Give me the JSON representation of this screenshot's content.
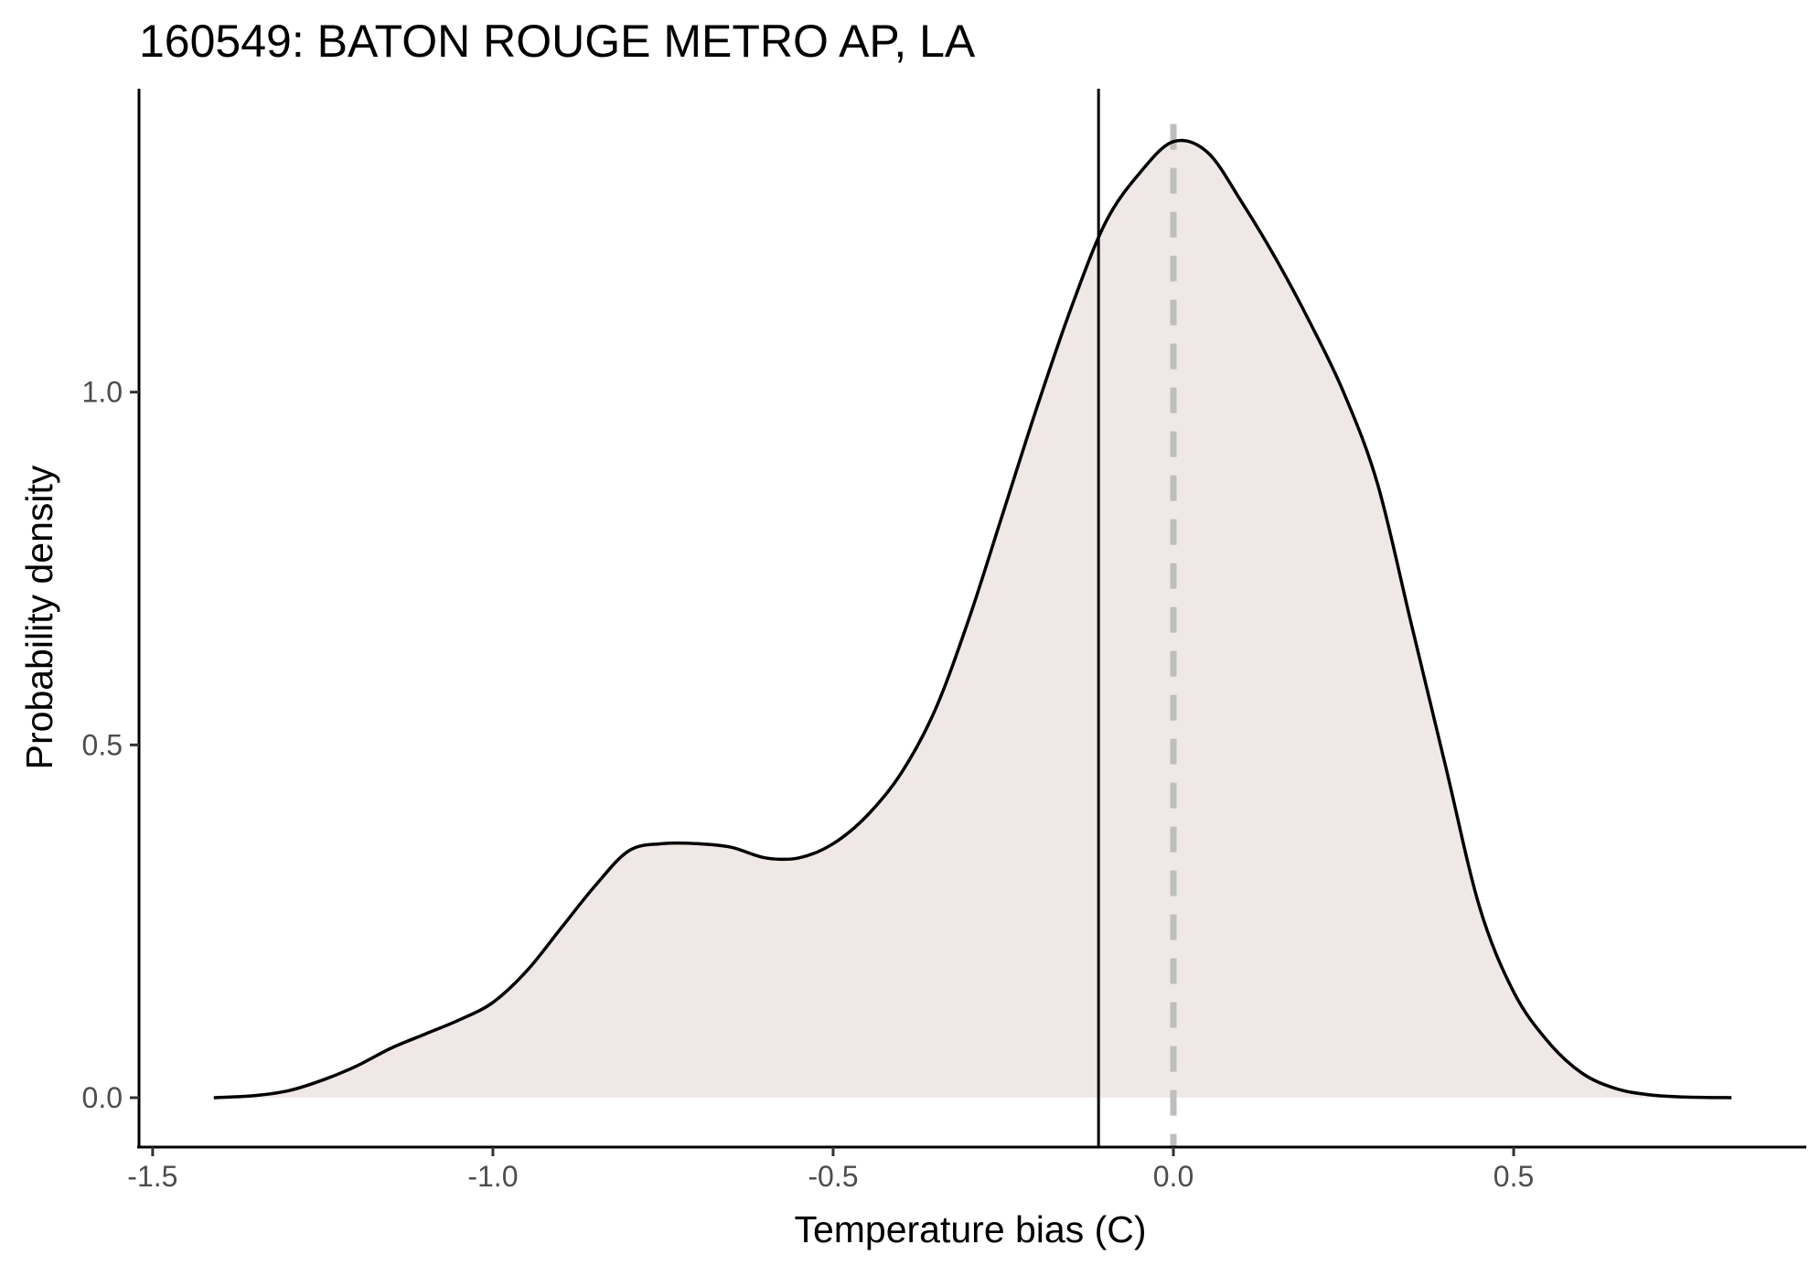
{
  "chart_data": {
    "type": "area",
    "title": "160549: BATON ROUGE METRO AP, LA",
    "xlabel": "Temperature bias (C)",
    "ylabel": "Probability density",
    "xlim": [
      -1.52,
      0.93
    ],
    "ylim": [
      -0.07,
      1.43
    ],
    "x_ticks": [
      -1.5,
      -1.0,
      -0.5,
      0.0,
      0.5
    ],
    "x_tick_labels": [
      "-1.5",
      "-1.0",
      "-0.5",
      "0.0",
      "0.5"
    ],
    "y_ticks": [
      0.0,
      0.5,
      1.0
    ],
    "y_tick_labels": [
      "0.0",
      "0.5",
      "1.0"
    ],
    "grid": false,
    "fill_color": "#efe8e6",
    "line_color": "#000000",
    "reference_lines": [
      {
        "x": -0.11,
        "style": "solid",
        "color": "#000000"
      },
      {
        "x": 0.0,
        "style": "dashed",
        "color": "#bebebe"
      }
    ],
    "series": [
      {
        "x": [
          -1.41,
          -1.35,
          -1.3,
          -1.25,
          -1.2,
          -1.15,
          -1.1,
          -1.05,
          -1.0,
          -0.95,
          -0.9,
          -0.85,
          -0.8,
          -0.75,
          -0.7,
          -0.65,
          -0.6,
          -0.55,
          -0.5,
          -0.45,
          -0.4,
          -0.35,
          -0.3,
          -0.25,
          -0.2,
          -0.15,
          -0.1,
          -0.05,
          0.0,
          0.05,
          0.1,
          0.15,
          0.2,
          0.25,
          0.3,
          0.35,
          0.4,
          0.45,
          0.5,
          0.55,
          0.6,
          0.65,
          0.7,
          0.75,
          0.82
        ],
        "y": [
          0.0,
          0.003,
          0.01,
          0.025,
          0.045,
          0.07,
          0.09,
          0.11,
          0.135,
          0.18,
          0.24,
          0.3,
          0.35,
          0.36,
          0.36,
          0.355,
          0.34,
          0.34,
          0.36,
          0.4,
          0.46,
          0.55,
          0.68,
          0.83,
          0.98,
          1.12,
          1.24,
          1.31,
          1.355,
          1.34,
          1.27,
          1.19,
          1.1,
          1.0,
          0.87,
          0.67,
          0.47,
          0.27,
          0.15,
          0.08,
          0.035,
          0.013,
          0.004,
          0.001,
          0.0
        ]
      }
    ]
  }
}
